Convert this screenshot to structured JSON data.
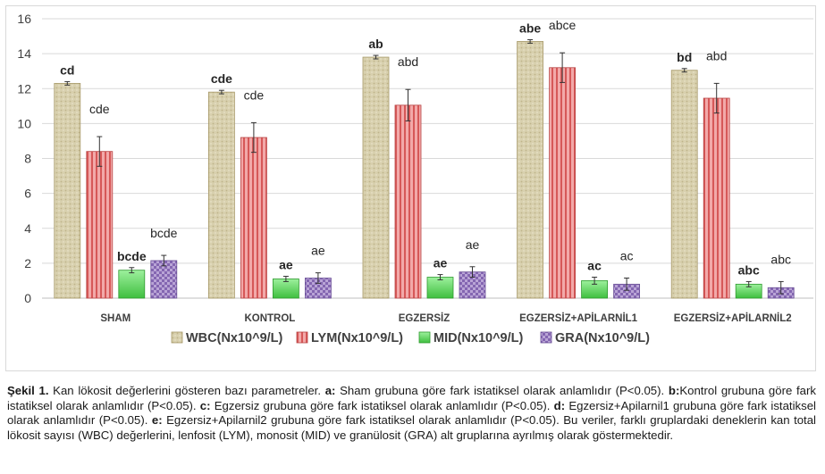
{
  "chart_data": {
    "type": "bar",
    "categories": [
      "SHAM",
      "KONTROL",
      "EGZERSİZ",
      "EGZERSİZ+APİLARNİL1",
      "EGZERSİZ+APİLARNİL2"
    ],
    "ylim": [
      0,
      16
    ],
    "yticks": [
      0,
      2,
      4,
      6,
      8,
      10,
      12,
      14,
      16
    ],
    "grid": true,
    "legend_position": "bottom",
    "series": [
      {
        "name": "WBC(Nx10^9/L)",
        "color": "#ddd5b3",
        "values": [
          12.3,
          11.8,
          13.8,
          14.7,
          13.05
        ],
        "errors": [
          0.1,
          0.1,
          0.1,
          0.1,
          0.1
        ],
        "labels": [
          "cd",
          "cde",
          "ab",
          "abe",
          "bd"
        ],
        "labels_bold": true
      },
      {
        "name": "LYM(Nx10^9/L)",
        "color": "#e37f7f",
        "values": [
          8.4,
          9.2,
          11.05,
          13.2,
          11.45
        ],
        "errors": [
          0.85,
          0.85,
          0.9,
          0.85,
          0.85
        ],
        "labels": [
          "cde",
          "cde",
          "abd",
          "abce",
          "abd"
        ],
        "labels_bold": false
      },
      {
        "name": "MID(Nx10^9/L)",
        "color": "#6dd86d",
        "values": [
          1.6,
          1.1,
          1.2,
          1.0,
          0.8
        ],
        "errors": [
          0.15,
          0.15,
          0.15,
          0.2,
          0.15
        ],
        "labels": [
          "bcde",
          "ae",
          "ae",
          "ac",
          "abc"
        ],
        "labels_bold": true
      },
      {
        "name": "GRA(Nx10^9/L)",
        "color": "#a187c2",
        "values": [
          2.15,
          1.15,
          1.5,
          0.8,
          0.6
        ],
        "errors": [
          0.3,
          0.3,
          0.3,
          0.35,
          0.35
        ],
        "labels": [
          "bcde",
          "ae",
          "ae",
          "ac",
          "abc"
        ],
        "labels_bold": false
      }
    ]
  },
  "caption": {
    "figure_label": "Şekil 1.",
    "intro": " Kan lökosit değerlerini gösteren bazı parametreler. ",
    "a_key": "a:",
    "a_text": " Sham grubuna göre fark istatiksel olarak anlamlıdır (P<0.05). ",
    "b_key": "b:",
    "b_text": "Kontrol grubuna göre fark istatiksel olarak anlamlıdır (P<0.05). ",
    "c_key": "c:",
    "c_text": " Egzersiz grubuna göre fark istatiksel olarak anlamlıdır (P<0.05). ",
    "d_key": "d:",
    "d_text": " Egzersiz+Apilarnil1 grubuna göre fark istatiksel olarak anlamlıdır (P<0.05). ",
    "e_key": "e:",
    "e_text": " Egzersiz+Apilarnil2 grubuna göre fark istatiksel olarak anlamlıdır (P<0.05). Bu veriler, farklı gruplardaki deneklerin kan total lökosit sayısı (WBC) değerlerini, lenfosit (LYM), monosit (MID) ve granülosit (GRA) alt gruplarına ayrılmış olarak göstermektedir."
  }
}
